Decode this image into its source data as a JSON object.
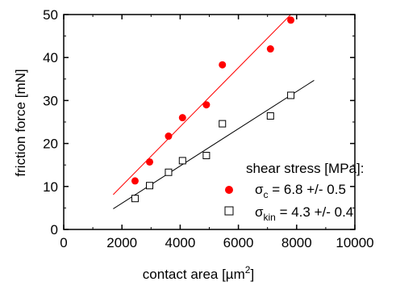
{
  "chart_data": {
    "type": "scatter",
    "title": "",
    "xlabel": "contact area [µm²]",
    "xlabel_main": "contact area [µm",
    "xlabel_sup": "2",
    "xlabel_end": "]",
    "ylabel": "friction force [mN]",
    "xlim": [
      0,
      10000
    ],
    "ylim": [
      0,
      50
    ],
    "x_ticks": [
      0,
      2000,
      4000,
      6000,
      8000,
      10000
    ],
    "y_ticks": [
      0,
      10,
      20,
      30,
      40,
      50
    ],
    "grid": false,
    "legend_position": "bottom-right",
    "legend_title": "shear stress [MPa]:",
    "series": [
      {
        "name": "σc = 6.8 +/- 0.5",
        "symbol": "σ",
        "subscript": "c",
        "label_rest": " = 6.8 +/- 0.5",
        "marker": "filled-circle",
        "color": "#ff0000",
        "x": [
          2450,
          2950,
          3600,
          4080,
          4900,
          5450,
          7100,
          7800
        ],
        "y": [
          11.3,
          15.7,
          21.7,
          26.0,
          29.0,
          38.3,
          42.0,
          48.7
        ],
        "fit": {
          "x": [
            1700,
            7800
          ],
          "y": [
            8.1,
            50.0
          ]
        }
      },
      {
        "name": "σkin = 4.3 +/- 0.4",
        "symbol": "σ",
        "subscript": "kin",
        "label_rest": " = 4.3 +/- 0.4",
        "marker": "open-square",
        "color": "#000000",
        "x": [
          2450,
          2950,
          3600,
          4080,
          4900,
          5450,
          7100,
          7800
        ],
        "y": [
          7.2,
          10.2,
          13.3,
          16.0,
          17.2,
          24.6,
          26.4,
          31.2
        ],
        "fit": {
          "x": [
            1700,
            8600
          ],
          "y": [
            4.8,
            34.7
          ]
        }
      }
    ]
  }
}
